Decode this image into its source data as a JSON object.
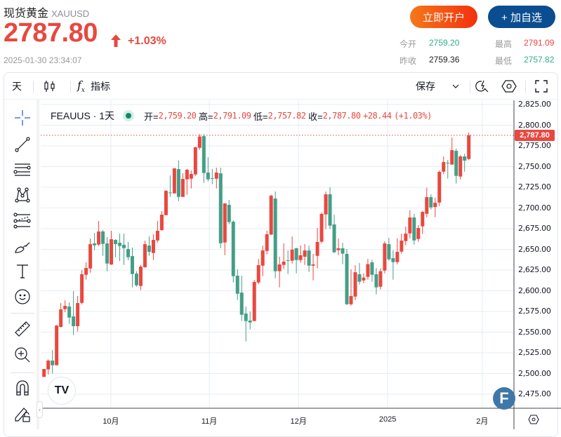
{
  "header": {
    "title": "现货黄金",
    "symbol": "XAUUSD",
    "price": "2787.80",
    "change_pct": "+1.03%",
    "timestamp": "2025-01-30 23:34:07",
    "open_account_label": "立即开户",
    "add_watchlist_label": "+ 加自选"
  },
  "stats": {
    "open_label": "今开",
    "open_value": "2759.20",
    "high_label": "最高",
    "high_value": "2791.09",
    "prev_close_label": "昨收",
    "prev_close_value": "2759.36",
    "low_label": "最低",
    "low_value": "2757.82"
  },
  "toolbar": {
    "interval": "天",
    "indicators_label": "指标",
    "save_label": "保存"
  },
  "legend": {
    "symbol": "FEAUUS · 1天",
    "open_label": "开=",
    "open": "2,759.20",
    "high_label": "高=",
    "high": "2,791.09",
    "low_label": "低=",
    "low": "2,757.82",
    "close_label": "收=",
    "close": "2,787.80",
    "change": "+28.44",
    "change_pct": "(+1.03%)"
  },
  "current_price_label": "2,787.80",
  "logo_tv": "TV",
  "logo_f": "F",
  "colors": {
    "up": "#e8483f",
    "down": "#459e87",
    "accent": "#2962ff"
  },
  "chart_data": {
    "type": "candlestick",
    "title": "FEAUUS · 1天",
    "ylim": [
      2460,
      2830
    ],
    "y_ticks": [
      "2,825.00",
      "2,800.00",
      "2,775.00",
      "2,750.00",
      "2,725.00",
      "2,700.00",
      "2,675.00",
      "2,650.00",
      "2,625.00",
      "2,600.00",
      "2,575.00",
      "2,550.00",
      "2,525.00",
      "2,500.00",
      "2,475.00"
    ],
    "y_tick_values": [
      2825,
      2800,
      2775,
      2750,
      2725,
      2700,
      2675,
      2650,
      2625,
      2600,
      2575,
      2550,
      2525,
      2500,
      2475
    ],
    "x_labels": [
      {
        "label": "10月",
        "index": 15.9
      },
      {
        "label": "11月",
        "index": 39.3
      },
      {
        "label": "12月",
        "index": 60.5
      },
      {
        "label": "2025",
        "index": 81.7
      },
      {
        "label": "2月",
        "index": 104.2
      }
    ],
    "current_price": 2787.8,
    "ohlc_fields": [
      "open",
      "high",
      "low",
      "close"
    ],
    "candles": [
      [
        2495.9,
        2505.5,
        2495.9,
        2505.5
      ],
      [
        2505,
        2517,
        2499,
        2515.6
      ],
      [
        2515.6,
        2528.4,
        2500.1,
        2510
      ],
      [
        2510,
        2558.6,
        2510,
        2558
      ],
      [
        2556.3,
        2585.1,
        2555.7,
        2577.5
      ],
      [
        2577.8,
        2588.5,
        2574.1,
        2581.7
      ],
      [
        2580.9,
        2586,
        2560,
        2567.6
      ],
      [
        2569,
        2599.5,
        2546.4,
        2557.2
      ],
      [
        2557.2,
        2593.6,
        2550.7,
        2585.1
      ],
      [
        2585.4,
        2625,
        2583.4,
        2619.9
      ],
      [
        2619.3,
        2634.3,
        2613.4,
        2627.5
      ],
      [
        2626.9,
        2663.1,
        2621.8,
        2656.3
      ],
      [
        2657.2,
        2669.9,
        2649,
        2654.9
      ],
      [
        2655.8,
        2684.3,
        2654.1,
        2671.6
      ],
      [
        2671.6,
        2673.3,
        2642.2,
        2656.6
      ],
      [
        2657.2,
        2664.8,
        2623.6,
        2632.9
      ],
      [
        2631.7,
        2672.4,
        2631.2,
        2662.3
      ],
      [
        2661.4,
        2662.3,
        2640.5,
        2656.3
      ],
      [
        2658,
        2669,
        2636,
        2654.1
      ],
      [
        2655.5,
        2669,
        2631.2,
        2651.5
      ],
      [
        2650.4,
        2658.9,
        2637.1,
        2640.5
      ],
      [
        2641.9,
        2652.1,
        2604.1,
        2620.2
      ],
      [
        2620.7,
        2623.6,
        2604.9,
        2606.6
      ],
      [
        2605.8,
        2630.9,
        2600.7,
        2629.2
      ],
      [
        2628.4,
        2660.6,
        2627.8,
        2656.3
      ],
      [
        2654.6,
        2665.6,
        2642.2,
        2647
      ],
      [
        2645.6,
        2668.2,
        2637.1,
        2661.4
      ],
      [
        2660.8,
        2684.3,
        2658.3,
        2672.4
      ],
      [
        2673.3,
        2696.2,
        2672.4,
        2691.9
      ],
      [
        2691.3,
        2721.6,
        2691.3,
        2720.7
      ],
      [
        2718.7,
        2739.4,
        2713.4,
        2718.4
      ],
      [
        2717.6,
        2747.9,
        2717.6,
        2747.9
      ],
      [
        2747,
        2757.2,
        2708.3,
        2713.4
      ],
      [
        2713.4,
        2741.9,
        2713.4,
        2735.1
      ],
      [
        2734.6,
        2747,
        2715.9,
        2746.2
      ],
      [
        2735.4,
        2745.3,
        2723.6,
        2741.1
      ],
      [
        2740.5,
        2774.1,
        2738.8,
        2773.3
      ],
      [
        2772.7,
        2789.4,
        2770.2,
        2786.3
      ],
      [
        2786.8,
        2789.4,
        2730.3,
        2742.2
      ],
      [
        2742.8,
        2761.4,
        2732,
        2734.6
      ],
      [
        2736,
        2747,
        2728.6,
        2735.4
      ],
      [
        2735.4,
        2748.7,
        2723.6,
        2742.8
      ],
      [
        2741.9,
        2748.7,
        2651.5,
        2657.4
      ],
      [
        2658.3,
        2705.5,
        2643,
        2705.5
      ],
      [
        2703.8,
        2709.7,
        2680.3,
        2682.9
      ],
      [
        2683.4,
        2685.1,
        2610,
        2617.6
      ],
      [
        2618.2,
        2625.8,
        2588.8,
        2596.4
      ],
      [
        2597.8,
        2618.2,
        2563.4,
        2571
      ],
      [
        2572.4,
        2580.9,
        2538.8,
        2563.4
      ],
      [
        2564,
        2574.9,
        2553.2,
        2561.7
      ],
      [
        2563.4,
        2613.1,
        2563.4,
        2610.6
      ],
      [
        2610,
        2638.5,
        2608,
        2630.9
      ],
      [
        2630.3,
        2654.6,
        2617.6,
        2648.7
      ],
      [
        2648.1,
        2672.4,
        2643.9,
        2668.2
      ],
      [
        2667.9,
        2716,
        2667.4,
        2714.8
      ],
      [
        2711.4,
        2719.9,
        2615.1,
        2623.6
      ],
      [
        2623.6,
        2641.1,
        2604.1,
        2631.8
      ],
      [
        2631.2,
        2657.2,
        2626.1,
        2635.2
      ],
      [
        2636.9,
        2648.7,
        2620.2,
        2636.3
      ],
      [
        2636.3,
        2665.7,
        2632.9,
        2649.6
      ],
      [
        2651.3,
        2652.1,
        2621,
        2637.1
      ],
      [
        2637.1,
        2654.6,
        2633.8,
        2642.8
      ],
      [
        2641.1,
        2656.3,
        2631.2,
        2648.7
      ],
      [
        2648.7,
        2654.6,
        2622.7,
        2630.3
      ],
      [
        2630.3,
        2644.5,
        2612.5,
        2631.8
      ],
      [
        2642.2,
        2675.8,
        2627,
        2658.9
      ],
      [
        2659.2,
        2694.5,
        2657.5,
        2692.8
      ],
      [
        2692.2,
        2719.9,
        2674.4,
        2716.5
      ],
      [
        2716.5,
        2725,
        2674.4,
        2678.7
      ],
      [
        2680.1,
        2691.9,
        2645.6,
        2646.5
      ],
      [
        2649,
        2663.1,
        2643.1,
        2651.3
      ],
      [
        2651.3,
        2658,
        2632,
        2644.8
      ],
      [
        2644.5,
        2650.4,
        2582.9,
        2583.7
      ],
      [
        2583.7,
        2625.8,
        2582,
        2593.6
      ],
      [
        2593,
        2630.9,
        2588.8,
        2622.4
      ],
      [
        2619.9,
        2633.5,
        2607.5,
        2610.9
      ],
      [
        2612.5,
        2621,
        2609.2,
        2615.9
      ],
      [
        2616.8,
        2638.5,
        2613.4,
        2632.1
      ],
      [
        2634.3,
        2637.7,
        2610.9,
        2619.3
      ],
      [
        2619.9,
        2627.5,
        2595.6,
        2604.1
      ],
      [
        2604.9,
        2627,
        2601.5,
        2623.6
      ],
      [
        2624.4,
        2659.7,
        2621,
        2657.2
      ],
      [
        2656.3,
        2663.9,
        2636.3,
        2638
      ],
      [
        2639.4,
        2649,
        2613.4,
        2634.6
      ],
      [
        2634.6,
        2663.4,
        2632,
        2647
      ],
      [
        2647.3,
        2669,
        2644.7,
        2660.6
      ],
      [
        2660,
        2677.5,
        2654.9,
        2669
      ],
      [
        2669.3,
        2697.3,
        2663.4,
        2688.5
      ],
      [
        2688.5,
        2693,
        2655.8,
        2660.8
      ],
      [
        2662.5,
        2679.2,
        2659.1,
        2675.8
      ],
      [
        2677.8,
        2696.4,
        2668.5,
        2695.3
      ],
      [
        2693,
        2724.4,
        2688.8,
        2713.1
      ],
      [
        2713.1,
        2716.5,
        2698.1,
        2700.7
      ],
      [
        2701.2,
        2712.5,
        2688.8,
        2706.3
      ],
      [
        2706.6,
        2745.3,
        2702.4,
        2743.6
      ],
      [
        2743.9,
        2762.3,
        2740.8,
        2755.5
      ],
      [
        2754.6,
        2758,
        2735.4,
        2753.8
      ],
      [
        2752.4,
        2785.1,
        2752.4,
        2769.9
      ],
      [
        2769,
        2771.6,
        2729.5,
        2738.8
      ],
      [
        2738,
        2764,
        2734.6,
        2762.3
      ],
      [
        2762.3,
        2765.6,
        2743.9,
        2757.2
      ],
      [
        2759.2,
        2791.09,
        2757.82,
        2787.8
      ]
    ]
  }
}
